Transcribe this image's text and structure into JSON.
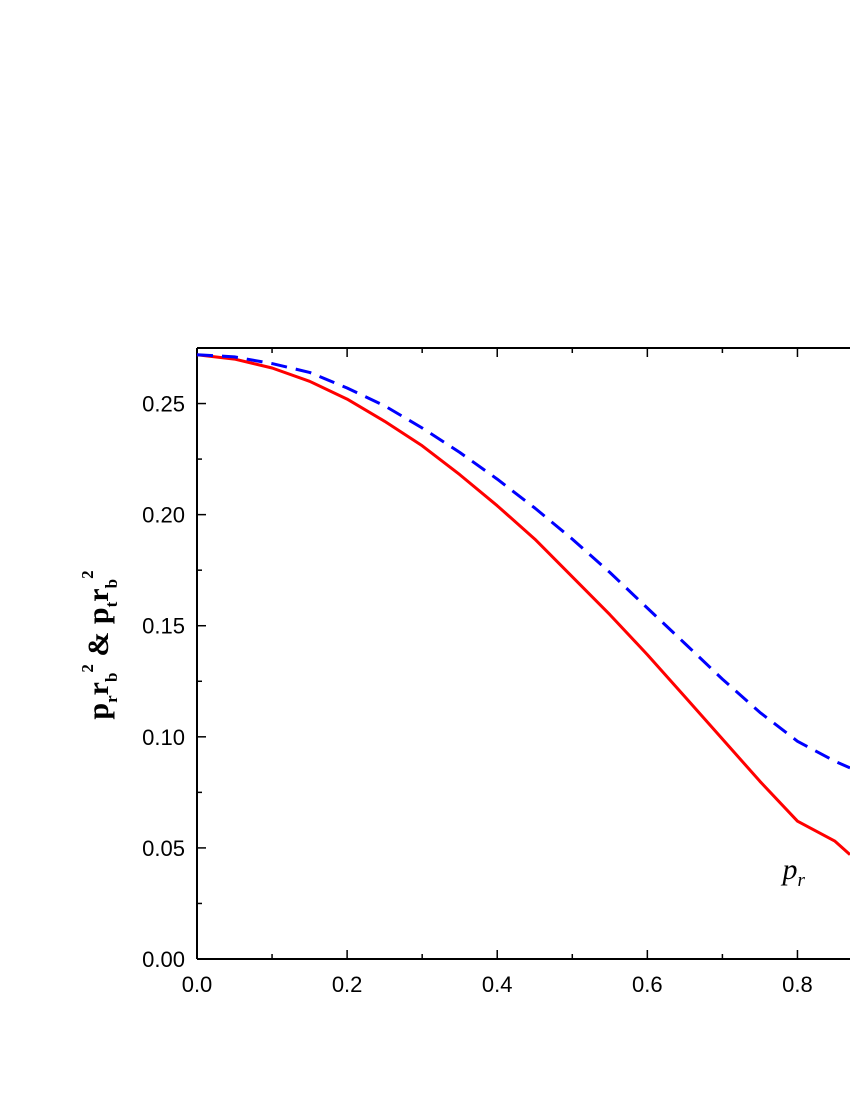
{
  "chart_data": {
    "type": "line",
    "title": "",
    "xlabel": "",
    "ylabel": {
      "parts": [
        "p",
        "r",
        "r",
        "b",
        "2",
        "&",
        "p",
        "t",
        "r",
        "b",
        "2"
      ]
    },
    "xlim": [
      0.0,
      0.87
    ],
    "ylim": [
      0.0,
      0.275
    ],
    "x_ticks": [
      0.0,
      0.2,
      0.4,
      0.6,
      0.8
    ],
    "x_tick_labels": [
      "0.0",
      "0.2",
      "0.4",
      "0.6",
      "0.8"
    ],
    "y_ticks": [
      0.0,
      0.05,
      0.1,
      0.15,
      0.2,
      0.25
    ],
    "y_tick_labels": [
      "0.00",
      "0.05",
      "0.10",
      "0.15",
      "0.20",
      "0.25"
    ],
    "grid": false,
    "series": [
      {
        "color": "#ff0000",
        "dash": "solid",
        "x": [
          0.0,
          0.05,
          0.1,
          0.15,
          0.2,
          0.25,
          0.3,
          0.35,
          0.4,
          0.45,
          0.5,
          0.55,
          0.6,
          0.65,
          0.7,
          0.75,
          0.8,
          0.85,
          0.87
        ],
        "y": [
          0.272,
          0.27,
          0.266,
          0.26,
          0.252,
          0.242,
          0.231,
          0.218,
          0.204,
          0.189,
          0.172,
          0.155,
          0.137,
          0.118,
          0.099,
          0.08,
          0.062,
          0.053,
          0.047
        ]
      },
      {
        "color": "#0000ff",
        "dash": "dashed",
        "x": [
          0.0,
          0.05,
          0.1,
          0.15,
          0.2,
          0.25,
          0.3,
          0.35,
          0.4,
          0.45,
          0.5,
          0.55,
          0.6,
          0.65,
          0.7,
          0.75,
          0.8,
          0.85,
          0.87
        ],
        "y": [
          0.272,
          0.271,
          0.268,
          0.264,
          0.257,
          0.249,
          0.239,
          0.228,
          0.216,
          0.203,
          0.189,
          0.174,
          0.158,
          0.142,
          0.126,
          0.111,
          0.098,
          0.089,
          0.086
        ]
      }
    ],
    "annotations": [
      {
        "text": "p",
        "sub": "r",
        "x": 0.78,
        "y": 0.036
      }
    ]
  }
}
